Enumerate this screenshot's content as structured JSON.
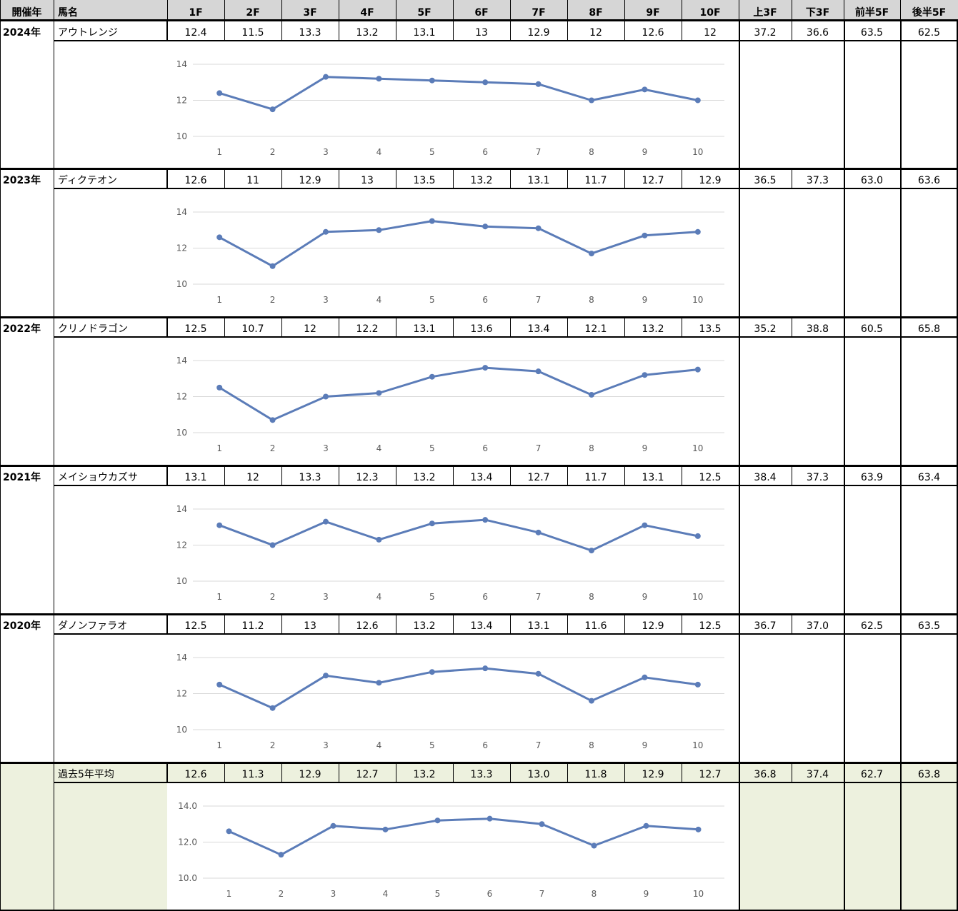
{
  "header": {
    "year": "開催年",
    "horse": "馬名",
    "furlongs": [
      "1F",
      "2F",
      "3F",
      "4F",
      "5F",
      "6F",
      "7F",
      "8F",
      "9F",
      "10F"
    ],
    "agg": [
      "上3F",
      "下3F",
      "前半5F",
      "後半5F"
    ]
  },
  "rows": [
    {
      "year": "2024年",
      "horse": "アウトレンジ",
      "laps": [
        "12.4",
        "11.5",
        "13.3",
        "13.2",
        "13.1",
        "13",
        "12.9",
        "12",
        "12.6",
        "12"
      ],
      "agg": [
        "37.2",
        "36.6",
        "63.5",
        "62.5"
      ]
    },
    {
      "year": "2023年",
      "horse": "ディクテオン",
      "laps": [
        "12.6",
        "11",
        "12.9",
        "13",
        "13.5",
        "13.2",
        "13.1",
        "11.7",
        "12.7",
        "12.9"
      ],
      "agg": [
        "36.5",
        "37.3",
        "63.0",
        "63.6"
      ]
    },
    {
      "year": "2022年",
      "horse": "クリノドラゴン",
      "laps": [
        "12.5",
        "10.7",
        "12",
        "12.2",
        "13.1",
        "13.6",
        "13.4",
        "12.1",
        "13.2",
        "13.5"
      ],
      "agg": [
        "35.2",
        "38.8",
        "60.5",
        "65.8"
      ]
    },
    {
      "year": "2021年",
      "horse": "メイショウカズサ",
      "laps": [
        "13.1",
        "12",
        "13.3",
        "12.3",
        "13.2",
        "13.4",
        "12.7",
        "11.7",
        "13.1",
        "12.5"
      ],
      "agg": [
        "38.4",
        "37.3",
        "63.9",
        "63.4"
      ]
    },
    {
      "year": "2020年",
      "horse": "ダノンファラオ",
      "laps": [
        "12.5",
        "11.2",
        "13",
        "12.6",
        "13.2",
        "13.4",
        "13.1",
        "11.6",
        "12.9",
        "12.5"
      ],
      "agg": [
        "36.7",
        "37.0",
        "62.5",
        "63.5"
      ]
    }
  ],
  "average": {
    "label": "過去5年平均",
    "laps": [
      "12.6",
      "11.3",
      "12.9",
      "12.7",
      "13.2",
      "13.3",
      "13.0",
      "11.8",
      "12.9",
      "12.7"
    ],
    "agg": [
      "36.8",
      "37.4",
      "62.7",
      "63.8"
    ]
  },
  "colors": {
    "line": "#5b7cb8",
    "grid": "#d9d9d9",
    "axis_text": "#595959",
    "avg_bg": "#edf1de",
    "header_bg": "#d6d6d6"
  },
  "chart_data": [
    {
      "type": "line",
      "x": [
        1,
        2,
        3,
        4,
        5,
        6,
        7,
        8,
        9,
        10
      ],
      "series": [
        {
          "values": [
            12.4,
            11.5,
            13.3,
            13.2,
            13.1,
            13,
            12.9,
            12,
            12.6,
            12
          ]
        }
      ],
      "ylim": [
        10,
        14
      ],
      "yticks": [
        "10",
        "12",
        "14"
      ],
      "xticks": [
        "1",
        "2",
        "3",
        "4",
        "5",
        "6",
        "7",
        "8",
        "9",
        "10"
      ],
      "grid": "horizontal",
      "legend": "none"
    },
    {
      "type": "line",
      "x": [
        1,
        2,
        3,
        4,
        5,
        6,
        7,
        8,
        9,
        10
      ],
      "series": [
        {
          "values": [
            12.6,
            11,
            12.9,
            13,
            13.5,
            13.2,
            13.1,
            11.7,
            12.7,
            12.9
          ]
        }
      ],
      "ylim": [
        10,
        14
      ],
      "yticks": [
        "10",
        "12",
        "14"
      ],
      "xticks": [
        "1",
        "2",
        "3",
        "4",
        "5",
        "6",
        "7",
        "8",
        "9",
        "10"
      ],
      "grid": "horizontal",
      "legend": "none"
    },
    {
      "type": "line",
      "x": [
        1,
        2,
        3,
        4,
        5,
        6,
        7,
        8,
        9,
        10
      ],
      "series": [
        {
          "values": [
            12.5,
            10.7,
            12,
            12.2,
            13.1,
            13.6,
            13.4,
            12.1,
            13.2,
            13.5
          ]
        }
      ],
      "ylim": [
        10,
        14
      ],
      "yticks": [
        "10",
        "12",
        "14"
      ],
      "xticks": [
        "1",
        "2",
        "3",
        "4",
        "5",
        "6",
        "7",
        "8",
        "9",
        "10"
      ],
      "grid": "horizontal",
      "legend": "none"
    },
    {
      "type": "line",
      "x": [
        1,
        2,
        3,
        4,
        5,
        6,
        7,
        8,
        9,
        10
      ],
      "series": [
        {
          "values": [
            13.1,
            12,
            13.3,
            12.3,
            13.2,
            13.4,
            12.7,
            11.7,
            13.1,
            12.5
          ]
        }
      ],
      "ylim": [
        10,
        14
      ],
      "yticks": [
        "10",
        "12",
        "14"
      ],
      "xticks": [
        "1",
        "2",
        "3",
        "4",
        "5",
        "6",
        "7",
        "8",
        "9",
        "10"
      ],
      "grid": "horizontal",
      "legend": "none"
    },
    {
      "type": "line",
      "x": [
        1,
        2,
        3,
        4,
        5,
        6,
        7,
        8,
        9,
        10
      ],
      "series": [
        {
          "values": [
            12.5,
            11.2,
            13,
            12.6,
            13.2,
            13.4,
            13.1,
            11.6,
            12.9,
            12.5
          ]
        }
      ],
      "ylim": [
        10,
        14
      ],
      "yticks": [
        "10",
        "12",
        "14"
      ],
      "xticks": [
        "1",
        "2",
        "3",
        "4",
        "5",
        "6",
        "7",
        "8",
        "9",
        "10"
      ],
      "grid": "horizontal",
      "legend": "none"
    },
    {
      "type": "line",
      "x": [
        1,
        2,
        3,
        4,
        5,
        6,
        7,
        8,
        9,
        10
      ],
      "series": [
        {
          "values": [
            12.6,
            11.3,
            12.9,
            12.7,
            13.2,
            13.3,
            13.0,
            11.8,
            12.9,
            12.7
          ]
        }
      ],
      "ylim": [
        10,
        14
      ],
      "yticks": [
        "10.0",
        "12.0",
        "14.0"
      ],
      "xticks": [
        "1",
        "2",
        "3",
        "4",
        "5",
        "6",
        "7",
        "8",
        "9",
        "10"
      ],
      "grid": "horizontal",
      "legend": "none"
    }
  ]
}
